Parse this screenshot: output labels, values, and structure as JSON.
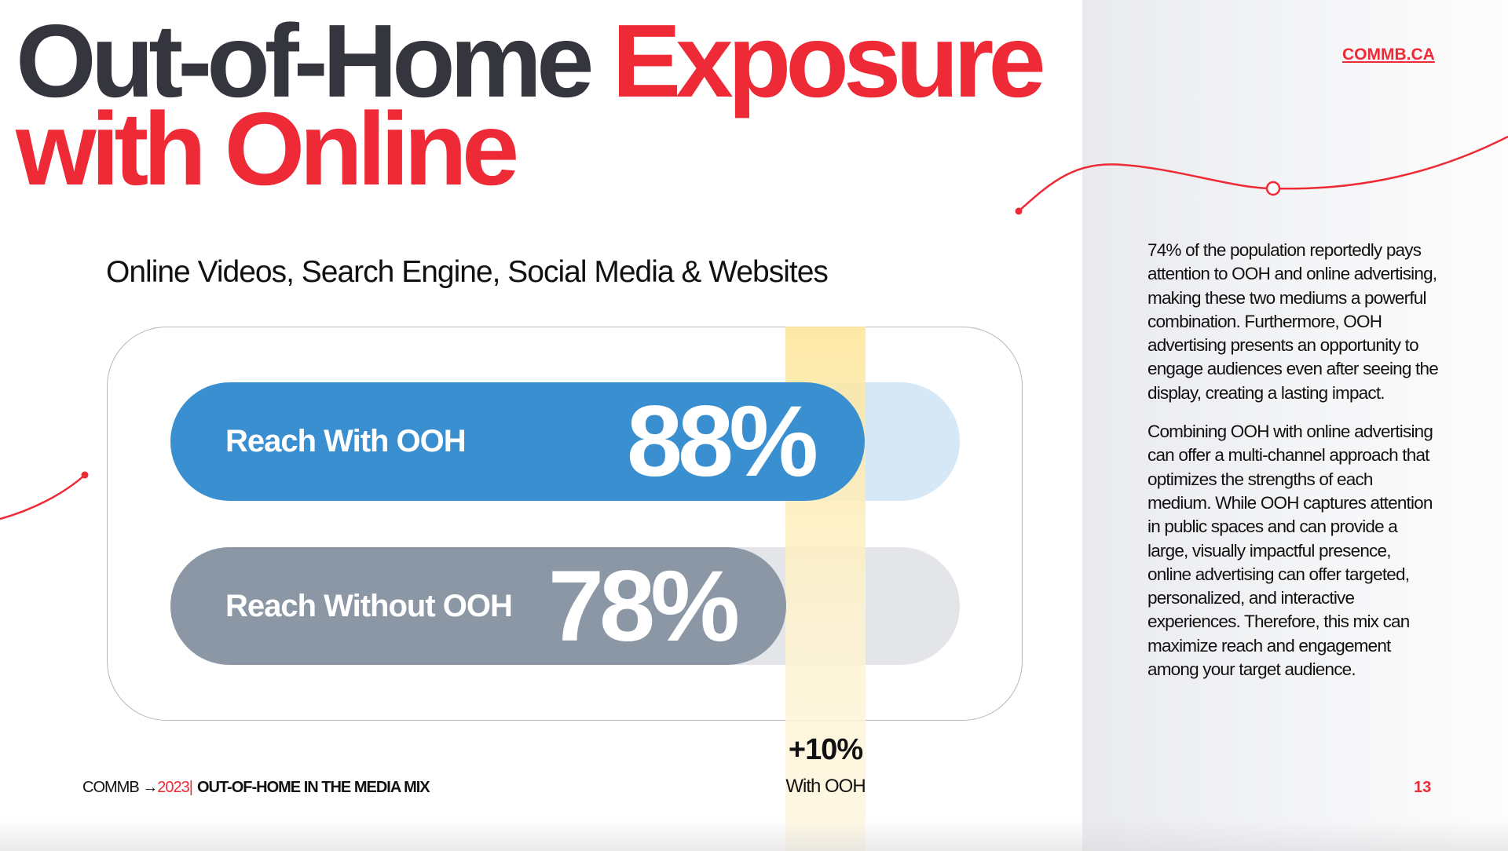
{
  "header": {
    "title_dark": "Out-of-Home ",
    "title_red1": "Exposure",
    "title_red2": "with Online",
    "link": "COMMB.CA"
  },
  "subtitle": "Online Videos, Search Engine, Social Media & Websites",
  "chart_data": {
    "type": "bar",
    "orientation": "horizontal",
    "categories": [
      "Reach With OOH",
      "Reach Without OOH"
    ],
    "values": [
      88,
      78
    ],
    "value_labels": [
      "88%",
      "78%"
    ],
    "xlim": [
      0,
      100
    ],
    "colors": [
      "#3a8fd0",
      "#8b97a5"
    ],
    "difference": {
      "label": "+10%",
      "caption": "With OOH"
    }
  },
  "body": {
    "paragraphs": [
      "74% of the population reportedly pays attention to OOH and online advertising, making these two mediums a powerful combination. Furthermore, OOH advertising presents an opportunity to engage audiences even after seeing the display, creating a lasting impact.",
      "Combining OOH with online advertising can offer a multi-channel approach that optimizes the strengths of each medium. While OOH captures attention in public spaces and can provide a large, visually impactful presence, online advertising can offer targeted, personalized, and interactive experiences. Therefore, this mix can maximize reach and engagement among your target audience."
    ]
  },
  "footer": {
    "brand": "COMMB",
    "arrow": "→",
    "year": "2023",
    "sep": "|",
    "section": "OUT-OF-HOME IN THE MEDIA MIX",
    "page": "13"
  },
  "colors": {
    "accent": "#ee2a36",
    "dark": "#34353d",
    "highlight": "#fde597"
  }
}
